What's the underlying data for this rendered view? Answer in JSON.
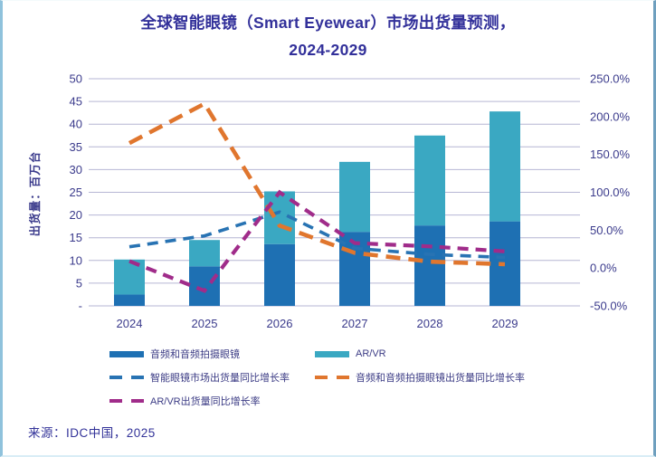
{
  "title": {
    "line1": "全球智能眼镜（Smart Eyewear）市场出货量预测，",
    "line2": "2024-2029"
  },
  "y_axis_title": "出货量：百万台",
  "source": "来源：IDC中国，2025",
  "colors": {
    "audio_bar": "#1e70b3",
    "arvr_bar": "#3aa8c2",
    "market_growth_line": "#2873b3",
    "audio_growth_line": "#e0762e",
    "arvr_growth_line": "#a02c8a",
    "gridline": "#b6b6d4",
    "tick_text": "#3b3b8c",
    "title_text": "#32309a"
  },
  "chart_data": {
    "type": "combo-stacked-bar-line",
    "title": "全球智能眼镜（Smart Eyewear）市场出货量预测，2024-2029",
    "categories": [
      "2024",
      "2025",
      "2026",
      "2027",
      "2028",
      "2029"
    ],
    "series": [
      {
        "name": "音频和音频拍摄眼镜",
        "type": "bar",
        "stack": "shipments",
        "axis": "left",
        "color": "#1e70b3",
        "values": [
          2.5,
          8.7,
          13.6,
          16.3,
          17.7,
          18.6
        ]
      },
      {
        "name": "AR/VR",
        "type": "bar",
        "stack": "shipments",
        "axis": "left",
        "color": "#3aa8c2",
        "values": [
          7.7,
          5.8,
          11.6,
          15.4,
          19.8,
          24.2
        ]
      },
      {
        "name": "智能眼镜市场出货量同比增长率",
        "type": "line",
        "axis": "right",
        "color": "#2873b3",
        "dash": "12 8",
        "width": 3.6,
        "values": [
          28,
          42.5,
          74,
          26,
          18,
          14
        ]
      },
      {
        "name": "音频和音频拍摄眼镜出货量同比增长率",
        "type": "line",
        "axis": "right",
        "color": "#e0762e",
        "dash": "16 9",
        "width": 4.6,
        "values": [
          165,
          217,
          56,
          20,
          8.5,
          5
        ]
      },
      {
        "name": "AR/VR出货量同比增长率",
        "type": "line",
        "axis": "right",
        "color": "#a02c8a",
        "dash": "12 8",
        "width": 4.2,
        "values": [
          9,
          -30,
          100,
          33,
          28.5,
          22
        ]
      }
    ],
    "left_axis": {
      "label": "出货量：百万台",
      "min": 0,
      "max": 50,
      "step": 5,
      "tick_labels": [
        "50",
        "45",
        "40",
        "35",
        "30",
        "25",
        "20",
        "15",
        "10",
        "5",
        "-"
      ]
    },
    "right_axis": {
      "min": -50,
      "max": 250,
      "step": 50,
      "tick_labels": [
        "250.0%",
        "200.0%",
        "150.0%",
        "100.0%",
        "50.0%",
        "0.0%",
        "-50.0%"
      ]
    },
    "grid": true,
    "legend_position": "bottom-left"
  },
  "legend": {
    "items": [
      {
        "label": "音频和音频拍摄眼镜",
        "swatch": "bar",
        "color": "#1e70b3"
      },
      {
        "label": "AR/VR",
        "swatch": "bar",
        "color": "#3aa8c2"
      },
      {
        "label": "智能眼镜市场出货量同比增长率",
        "swatch": "dash",
        "color": "#2873b3"
      },
      {
        "label": "音频和音频拍摄眼镜出货量同比增长率",
        "swatch": "dash",
        "color": "#e0762e"
      },
      {
        "label": "AR/VR出货量同比增长率",
        "swatch": "dash",
        "color": "#a02c8a"
      }
    ],
    "rows": [
      [
        0,
        1
      ],
      [
        2,
        3
      ],
      [
        4
      ]
    ]
  }
}
